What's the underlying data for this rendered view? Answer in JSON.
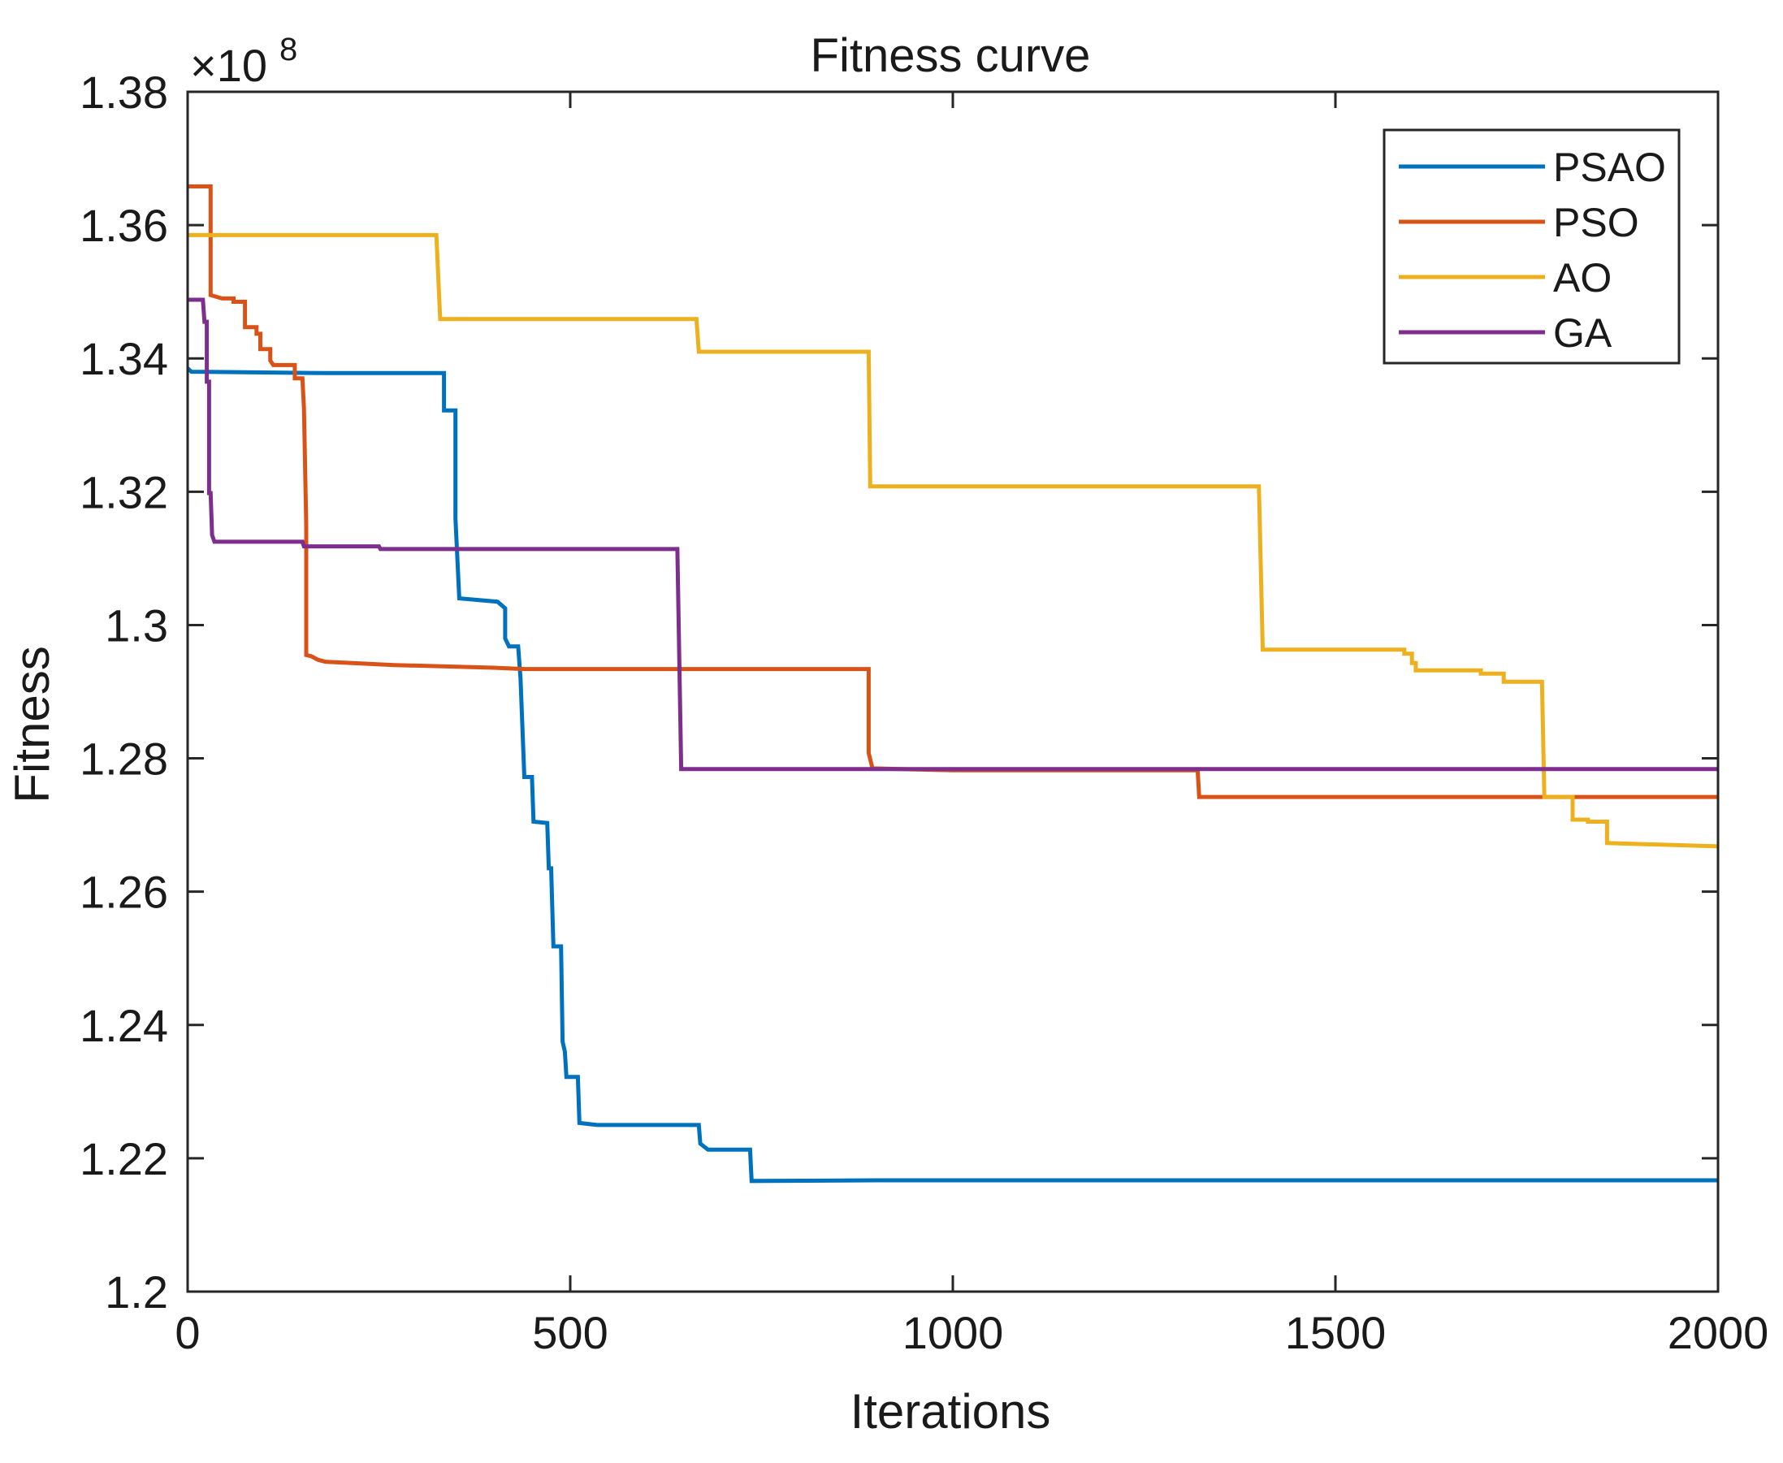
{
  "chart_data": {
    "type": "line",
    "title": "Fitness curve",
    "xlabel": "Iterations",
    "ylabel": "Fitness",
    "xlim": [
      0,
      2000
    ],
    "ylim": [
      1.2,
      1.38
    ],
    "y_exponent": "8",
    "x_ticks": [
      0,
      500,
      1000,
      1500,
      2000
    ],
    "x_tick_labels": [
      "0",
      "500",
      "1000",
      "1500",
      "2000"
    ],
    "y_ticks": [
      1.2,
      1.22,
      1.24,
      1.26,
      1.28,
      1.3,
      1.32,
      1.34,
      1.36,
      1.38
    ],
    "y_tick_labels": [
      "1.2",
      "1.22",
      "1.24",
      "1.26",
      "1.28",
      "1.3",
      "1.32",
      "1.34",
      "1.36",
      "1.38"
    ],
    "grid": false,
    "legend_position": "top-right",
    "series": [
      {
        "name": "PSAO",
        "color": "#0072BD",
        "points": [
          [
            0,
            1.3385
          ],
          [
            5,
            1.338
          ],
          [
            180,
            1.3378
          ],
          [
            335,
            1.3378
          ],
          [
            335,
            1.3322
          ],
          [
            350,
            1.3322
          ],
          [
            350,
            1.316
          ],
          [
            355,
            1.304
          ],
          [
            405,
            1.3035
          ],
          [
            415,
            1.3025
          ],
          [
            415,
            1.298
          ],
          [
            420,
            1.2968
          ],
          [
            432,
            1.2968
          ],
          [
            435,
            1.292
          ],
          [
            440,
            1.2772
          ],
          [
            450,
            1.2772
          ],
          [
            452,
            1.2705
          ],
          [
            470,
            1.2703
          ],
          [
            472,
            1.2635
          ],
          [
            475,
            1.2635
          ],
          [
            478,
            1.2518
          ],
          [
            488,
            1.2518
          ],
          [
            490,
            1.2375
          ],
          [
            493,
            1.236
          ],
          [
            495,
            1.2322
          ],
          [
            510,
            1.2322
          ],
          [
            512,
            1.2253
          ],
          [
            535,
            1.225
          ],
          [
            668,
            1.225
          ],
          [
            670,
            1.2222
          ],
          [
            680,
            1.2213
          ],
          [
            735,
            1.2213
          ],
          [
            737,
            1.2166
          ],
          [
            900,
            1.2167
          ],
          [
            2000,
            1.2167
          ]
        ]
      },
      {
        "name": "PSO",
        "color": "#D95319",
        "points": [
          [
            0,
            1.3658
          ],
          [
            30,
            1.3658
          ],
          [
            30,
            1.3495
          ],
          [
            45,
            1.349
          ],
          [
            60,
            1.349
          ],
          [
            60,
            1.3485
          ],
          [
            75,
            1.3485
          ],
          [
            75,
            1.3447
          ],
          [
            90,
            1.3447
          ],
          [
            90,
            1.3437
          ],
          [
            95,
            1.3437
          ],
          [
            95,
            1.3414
          ],
          [
            108,
            1.3414
          ],
          [
            108,
            1.3397
          ],
          [
            112,
            1.339
          ],
          [
            140,
            1.339
          ],
          [
            140,
            1.337
          ],
          [
            150,
            1.337
          ],
          [
            152,
            1.3325
          ],
          [
            155,
            1.315
          ],
          [
            155,
            1.2955
          ],
          [
            162,
            1.2953
          ],
          [
            170,
            1.2948
          ],
          [
            180,
            1.2945
          ],
          [
            270,
            1.294
          ],
          [
            400,
            1.2936
          ],
          [
            440,
            1.2934
          ],
          [
            890,
            1.2934
          ],
          [
            890,
            1.2808
          ],
          [
            895,
            1.2785
          ],
          [
            1000,
            1.2782
          ],
          [
            1320,
            1.2782
          ],
          [
            1322,
            1.2742
          ],
          [
            2000,
            1.2742
          ]
        ]
      },
      {
        "name": "AO",
        "color": "#EDB120",
        "points": [
          [
            0,
            1.3585
          ],
          [
            325,
            1.3585
          ],
          [
            330,
            1.3459
          ],
          [
            665,
            1.3459
          ],
          [
            668,
            1.341
          ],
          [
            890,
            1.341
          ],
          [
            892,
            1.3208
          ],
          [
            1400,
            1.3208
          ],
          [
            1405,
            1.2963
          ],
          [
            1590,
            1.2963
          ],
          [
            1590,
            1.2957
          ],
          [
            1600,
            1.2957
          ],
          [
            1600,
            1.2943
          ],
          [
            1605,
            1.2943
          ],
          [
            1605,
            1.2932
          ],
          [
            1690,
            1.2932
          ],
          [
            1690,
            1.2927
          ],
          [
            1720,
            1.2927
          ],
          [
            1720,
            1.2915
          ],
          [
            1770,
            1.2915
          ],
          [
            1773,
            1.2742
          ],
          [
            1810,
            1.2742
          ],
          [
            1810,
            1.2708
          ],
          [
            1830,
            1.2708
          ],
          [
            1830,
            1.2705
          ],
          [
            1855,
            1.2705
          ],
          [
            1855,
            1.2673
          ],
          [
            2000,
            1.2668
          ]
        ]
      },
      {
        "name": "GA",
        "color": "#7E2F8E",
        "points": [
          [
            0,
            1.3488
          ],
          [
            20,
            1.3488
          ],
          [
            22,
            1.3455
          ],
          [
            25,
            1.3455
          ],
          [
            25,
            1.3365
          ],
          [
            28,
            1.3365
          ],
          [
            28,
            1.3198
          ],
          [
            30,
            1.3198
          ],
          [
            32,
            1.3135
          ],
          [
            35,
            1.3125
          ],
          [
            150,
            1.3125
          ],
          [
            152,
            1.3118
          ],
          [
            250,
            1.3118
          ],
          [
            252,
            1.3114
          ],
          [
            640,
            1.3114
          ],
          [
            645,
            1.2784
          ],
          [
            2000,
            1.2784
          ]
        ]
      }
    ]
  }
}
